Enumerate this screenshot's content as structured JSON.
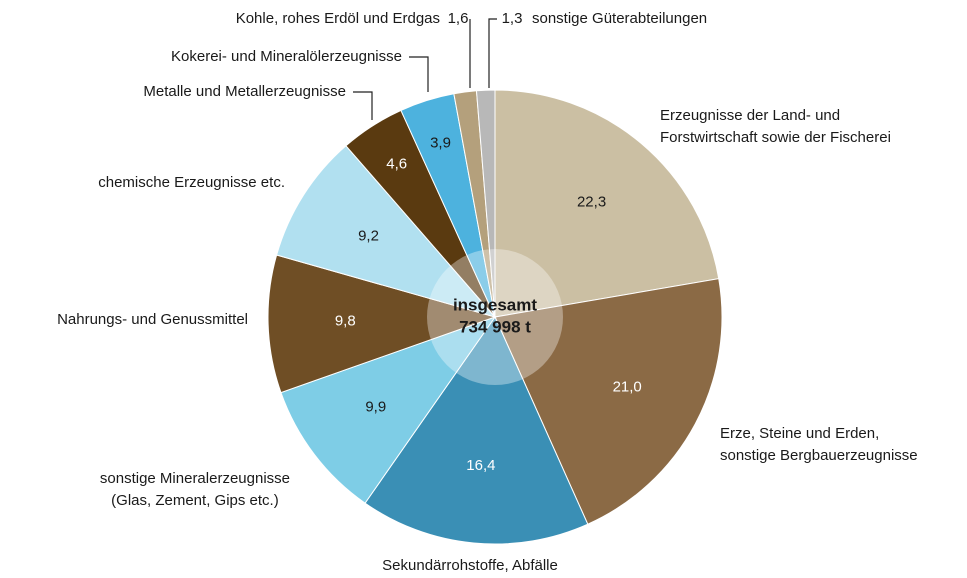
{
  "chart_data": {
    "type": "pie",
    "center_label": [
      "insgesamt",
      "734 998 t"
    ],
    "categories": [
      "Erzeugnisse der Land- und\nForstwirtschaft sowie der Fischerei",
      "Erze, Steine und Erden,\nsonstige Bergbauerzeugnisse",
      "Sekundärrohstoffe, Abfälle",
      "sonstige Mineralerzeugnisse\n(Glas, Zement, Gips etc.)",
      "Nahrungs- und Genussmittel",
      "chemische Erzeugnisse etc.",
      "Metalle und Metallerzeugnisse",
      "Kokerei- und Mineralölerzeugnisse",
      "Kohle, rohes Erdöl und Erdgas",
      "sonstige Güterabteilungen"
    ],
    "values": [
      22.3,
      21.0,
      16.4,
      9.9,
      9.8,
      9.2,
      4.6,
      3.9,
      1.6,
      1.3
    ],
    "value_labels": [
      "22,3",
      "21,0",
      "16,4",
      "9,9",
      "9,8",
      "9,2",
      "4,6",
      "3,9",
      "1,6",
      "1,3"
    ],
    "colors": [
      "#cbbfa3",
      "#8b6a45",
      "#3a8fb5",
      "#7ecde6",
      "#6f4e25",
      "#b1e0f0",
      "#5a3a10",
      "#4db2de",
      "#b4a07c",
      "#b8b8b8"
    ]
  }
}
